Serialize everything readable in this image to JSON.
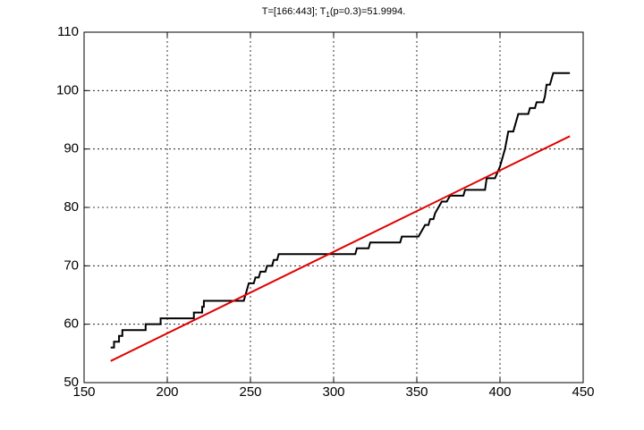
{
  "chart_data": {
    "type": "line",
    "title": {
      "main": "T=[166:443]; T",
      "subscript": "1",
      "rest": "(p=0.3)=51.9994."
    },
    "x": [
      166,
      168,
      168,
      171,
      171,
      173,
      173,
      187,
      187,
      196,
      196,
      216,
      216,
      221,
      221,
      222,
      222,
      246,
      247,
      248,
      249,
      252,
      253,
      255,
      256,
      259,
      260,
      263,
      264,
      266,
      267,
      313,
      314,
      321,
      322,
      340,
      341,
      351,
      353,
      355,
      357,
      358,
      360,
      361,
      363,
      365,
      368,
      370,
      378,
      379,
      391,
      392,
      397,
      400,
      403,
      405,
      408,
      411,
      417,
      418,
      421,
      422,
      426,
      427,
      428,
      430,
      431,
      432,
      442
    ],
    "series": [
      {
        "color": "#000000",
        "values": [
          56,
          56,
          57,
          57,
          58,
          58,
          59,
          59,
          60,
          60,
          61,
          61,
          62,
          62,
          63,
          63,
          64,
          64,
          65,
          66,
          67,
          67,
          68,
          68,
          69,
          69,
          70,
          70,
          71,
          71,
          72,
          72,
          73,
          73,
          74,
          74,
          75,
          75,
          76,
          77,
          77,
          78,
          78,
          79,
          80,
          81,
          81,
          82,
          82,
          83,
          83,
          85,
          85,
          87,
          90,
          93,
          93,
          96,
          96,
          97,
          97,
          98,
          98,
          99,
          101,
          101,
          102,
          103,
          103
        ]
      },
      {
        "color": "#e00000",
        "x": [
          166,
          442
        ],
        "values": [
          53.7,
          92.2
        ]
      }
    ],
    "xlim": [
      150,
      450
    ],
    "xticks": [
      150,
      200,
      250,
      300,
      350,
      400,
      450
    ],
    "ylim": [
      50,
      110
    ],
    "yticks": [
      50,
      60,
      70,
      80,
      90,
      100,
      110
    ],
    "grid": true
  }
}
